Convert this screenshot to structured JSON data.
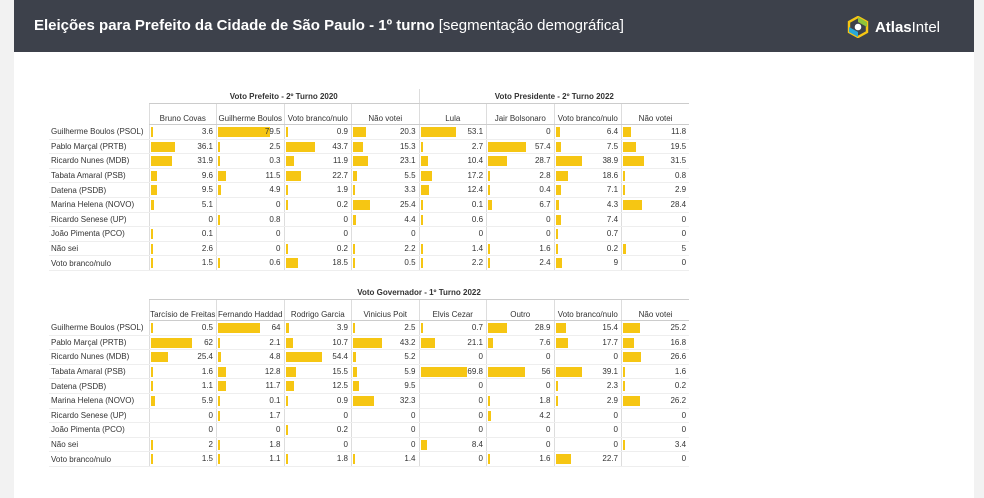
{
  "header": {
    "title": "Eleições para Prefeito da Cidade de São Paulo - 1º turno",
    "subtitle": "[segmentação demográfica]",
    "brand_prefix": "Atlas",
    "brand_suffix": "Intel",
    "logo_icon": "atlas-intel-logo-icon",
    "colors": {
      "header_bg": "#3d414b",
      "bar": "#f6c613"
    }
  },
  "rows": [
    "Guilherme Boulos (PSOL)",
    "Pablo Marçal (PRTB)",
    "Ricardo Nunes (MDB)",
    "Tabata Amaral (PSB)",
    "Datena (PSDB)",
    "Marina Helena (NOVO)",
    "Ricardo Senese (UP)",
    "João Pimenta (PCO)",
    "Não sei",
    "Voto branco/nulo"
  ],
  "table1": {
    "groups": [
      {
        "label": "Voto Prefeito - 2º Turno 2020",
        "span": 4
      },
      {
        "label": "Voto Presidente - 2º Turno 2022",
        "span": 4
      }
    ],
    "columns": [
      "Bruno Covas",
      "Guilherme Boulos",
      "Voto branco/nulo",
      "Não votei",
      "Lula",
      "Jair Bolsonaro",
      "Voto branco/nulo",
      "Não votei"
    ],
    "data": [
      [
        "3.6",
        "79.5",
        "0.9",
        "20.3",
        "53.1",
        "0",
        "6.4",
        "11.8"
      ],
      [
        "36.1",
        "2.5",
        "43.7",
        "15.3",
        "2.7",
        "57.4",
        "7.5",
        "19.5"
      ],
      [
        "31.9",
        "0.3",
        "11.9",
        "23.1",
        "10.4",
        "28.7",
        "38.9",
        "31.5"
      ],
      [
        "9.6",
        "11.5",
        "22.7",
        "5.5",
        "17.2",
        "2.8",
        "18.6",
        "0.8"
      ],
      [
        "9.5",
        "4.9",
        "1.9",
        "3.3",
        "12.4",
        "0.4",
        "7.1",
        "2.9"
      ],
      [
        "5.1",
        "0",
        "0.2",
        "25.4",
        "0.1",
        "6.7",
        "4.3",
        "28.4"
      ],
      [
        "0",
        "0.8",
        "0",
        "4.4",
        "0.6",
        "0",
        "7.4",
        "0"
      ],
      [
        "0.1",
        "0",
        "0",
        "0",
        "0",
        "0",
        "0.7",
        "0"
      ],
      [
        "2.6",
        "0",
        "0.2",
        "2.2",
        "1.4",
        "1.6",
        "0.2",
        "5"
      ],
      [
        "1.5",
        "0.6",
        "18.5",
        "0.5",
        "2.2",
        "2.4",
        "9",
        "0"
      ]
    ]
  },
  "table2": {
    "groups": [
      {
        "label": "Voto Governador - 1º Turno 2022",
        "span": 8
      }
    ],
    "columns": [
      "Tarcísio de Freitas",
      "Fernando Haddad",
      "Rodrigo Garcia",
      "Vinicius Poit",
      "Elvis Cezar",
      "Outro",
      "Voto branco/nulo",
      "Não votei"
    ],
    "data": [
      [
        "0.5",
        "64",
        "3.9",
        "2.5",
        "0.7",
        "28.9",
        "15.4",
        "25.2"
      ],
      [
        "62",
        "2.1",
        "10.7",
        "43.2",
        "21.1",
        "7.6",
        "17.7",
        "16.8"
      ],
      [
        "25.4",
        "4.8",
        "54.4",
        "5.2",
        "0",
        "0",
        "0",
        "26.6"
      ],
      [
        "1.6",
        "12.8",
        "15.5",
        "5.9",
        "69.8",
        "56",
        "39.1",
        "1.6"
      ],
      [
        "1.1",
        "11.7",
        "12.5",
        "9.5",
        "0",
        "0",
        "2.3",
        "0.2"
      ],
      [
        "5.9",
        "0.1",
        "0.9",
        "32.3",
        "0",
        "1.8",
        "2.9",
        "26.2"
      ],
      [
        "0",
        "1.7",
        "0",
        "0",
        "0",
        "4.2",
        "0",
        "0"
      ],
      [
        "0",
        "0",
        "0.2",
        "0",
        "0",
        "0",
        "0",
        "0"
      ],
      [
        "2",
        "1.8",
        "0",
        "0",
        "8.4",
        "0",
        "0",
        "3.4"
      ],
      [
        "1.5",
        "1.1",
        "1.8",
        "1.4",
        "0",
        "1.6",
        "22.7",
        "0"
      ]
    ]
  }
}
